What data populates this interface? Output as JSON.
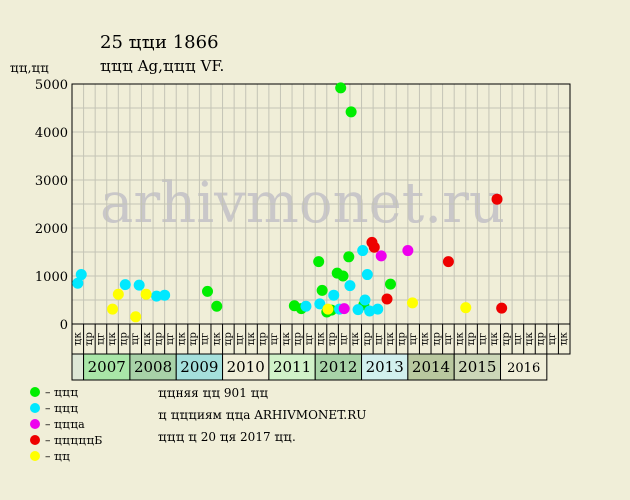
{
  "header": {
    "title": "25 ҵҵи 1866",
    "subtitle": "ҵҵҵ Ag,ҵҵҵ VF.",
    "y_unit": "ҵҵ,ҵҵ"
  },
  "watermark": "arhivmonet.ru",
  "footer": {
    "line1": "ҵҵняя ҵҵ 901 ҵҵ",
    "line2": "ҵ ҵҵҵиям ҵҵа ARHIVMONET.RU",
    "line3": "ҵҵҵ ҵ 20 ҵя 2017 ҵҵ."
  },
  "chart_data": {
    "type": "scatter",
    "title": "25 ҵҵи 1866",
    "subtitle": "ҵҵҵ Ag,ҵҵҵ VF.",
    "ylabel": "ҵҵ,ҵҵ",
    "ylim": [
      0,
      5000
    ],
    "yticks": [
      0,
      1000,
      2000,
      3000,
      4000,
      5000
    ],
    "grid": true,
    "half_labels": [
      "ҵк",
      "ҵр",
      "ҵг",
      "ҵк",
      "ҵр",
      "ҵг",
      "ҵк",
      "ҵр",
      "ҵг",
      "ҵк",
      "ҵр",
      "ҵг",
      "ҵк",
      "ҵр",
      "ҵг",
      "ҵк",
      "ҵр",
      "ҵг",
      "ҵк",
      "ҵр",
      "ҵг",
      "ҵк",
      "ҵр",
      "ҵг",
      "ҵк",
      "ҵр",
      "ҵг",
      "ҵк",
      "ҵр",
      "ҵг",
      "ҵк",
      "ҵр",
      "ҵг",
      "ҵк",
      "ҵр",
      "ҵг",
      "ҵк",
      "ҵр",
      "ҵг",
      "ҵк",
      "ҵр",
      "ҵг",
      "ҵк"
    ],
    "years": [
      {
        "label": "",
        "color": "#dde7d6"
      },
      {
        "label": "2007",
        "color": "#a9e6a8"
      },
      {
        "label": "2008",
        "color": "#a8d2a8"
      },
      {
        "label": "2009",
        "color": "#a5e0dc"
      },
      {
        "label": "2010",
        "color": "#f0eed8"
      },
      {
        "label": "2011",
        "color": "#d1f2c9"
      },
      {
        "label": "2012",
        "color": "#a8d4a8"
      },
      {
        "label": "2013",
        "color": "#d2f0ee"
      },
      {
        "label": "2014",
        "color": "#b9c89f"
      },
      {
        "label": "2015",
        "color": "#ccd7b8"
      },
      {
        "label": "2016",
        "color": "#f0eed8"
      }
    ],
    "legend_position": "bottom-left",
    "series": [
      {
        "name": "ҵҵҵ",
        "color": "#00ee00",
        "points": [
          [
            11.7,
            680
          ],
          [
            12.5,
            370
          ],
          [
            19.2,
            380
          ],
          [
            19.8,
            320
          ],
          [
            21.3,
            1300
          ],
          [
            21.6,
            700
          ],
          [
            22.0,
            250
          ],
          [
            22.4,
            290
          ],
          [
            22.9,
            1060
          ],
          [
            23.2,
            4920
          ],
          [
            23.4,
            1000
          ],
          [
            23.9,
            1400
          ],
          [
            24.1,
            4420
          ],
          [
            25.2,
            400
          ],
          [
            27.5,
            830
          ]
        ]
      },
      {
        "name": "ҵҵҵ",
        "color": "#00e8ff",
        "points": [
          [
            0.5,
            850
          ],
          [
            0.8,
            1030
          ],
          [
            4.6,
            820
          ],
          [
            5.8,
            810
          ],
          [
            7.3,
            580
          ],
          [
            8.0,
            600
          ],
          [
            20.2,
            370
          ],
          [
            21.4,
            420
          ],
          [
            22.6,
            600
          ],
          [
            23.1,
            310
          ],
          [
            24.0,
            800
          ],
          [
            24.7,
            300
          ],
          [
            25.3,
            500
          ],
          [
            25.1,
            1530
          ],
          [
            25.5,
            1030
          ],
          [
            25.7,
            270
          ],
          [
            26.4,
            310
          ]
        ]
      },
      {
        "name": "ҵҵҵа",
        "color": "#ee00ee",
        "points": [
          [
            23.5,
            320
          ],
          [
            26.7,
            1420
          ],
          [
            29.0,
            1530
          ]
        ]
      },
      {
        "name": "ҵҵҵҵҵБ",
        "color": "#ee0000",
        "points": [
          [
            25.9,
            1700
          ],
          [
            26.1,
            1600
          ],
          [
            27.2,
            520
          ],
          [
            32.5,
            1300
          ],
          [
            36.7,
            2600
          ],
          [
            37.1,
            330
          ]
        ]
      },
      {
        "name": "ҵҵ",
        "color": "#ffff00",
        "points": [
          [
            3.5,
            310
          ],
          [
            4.0,
            620
          ],
          [
            5.5,
            150
          ],
          [
            6.4,
            620
          ],
          [
            22.1,
            310
          ],
          [
            29.4,
            440
          ],
          [
            34.0,
            340
          ]
        ]
      }
    ]
  }
}
